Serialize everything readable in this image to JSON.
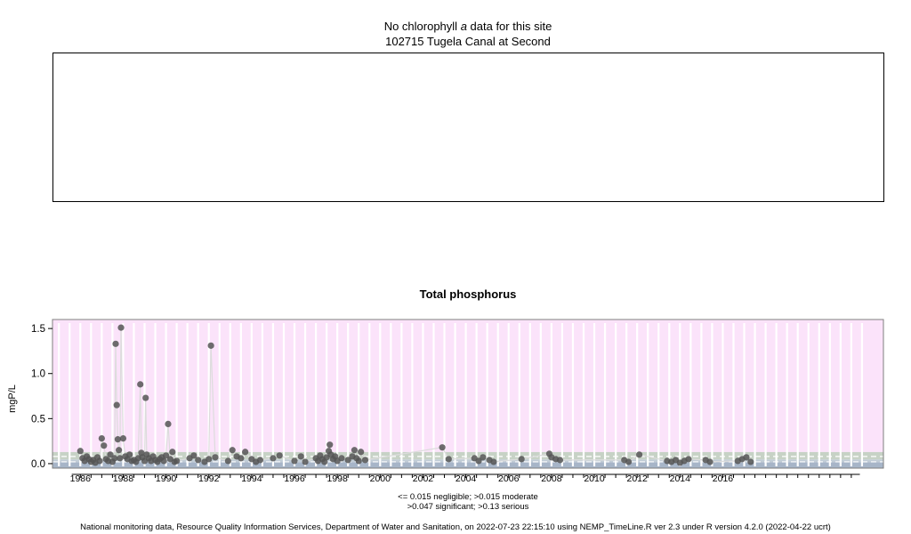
{
  "top_panel": {
    "message_prefix": "No chlorophyll",
    "message_italic": "a",
    "message_suffix": " data for this site",
    "site": "102715 Tugela Canal at Second"
  },
  "chart_data": {
    "type": "scatter",
    "title": "Total phosphorus",
    "xlabel": "",
    "ylabel": "mgP/L",
    "xlim": [
      1984.7,
      2023.5
    ],
    "ylim": [
      -0.05,
      1.6
    ],
    "yticks": [
      0.0,
      0.5,
      1.0,
      1.5
    ],
    "ytick_labels": [
      "0.0",
      "0.5",
      "1.0",
      "1.5"
    ],
    "xticks": [
      1986,
      1988,
      1990,
      1992,
      1994,
      1996,
      1998,
      2000,
      2002,
      2004,
      2006,
      2008,
      2010,
      2012,
      2014,
      2016
    ],
    "xtick_labels": [
      "1986",
      "1988",
      "1990",
      "1992",
      "1994",
      "1996",
      "1998",
      "2000",
      "2002",
      "2004",
      "2006",
      "2008",
      "2010",
      "2012",
      "2014",
      "2016"
    ],
    "bands": [
      {
        "name": "negligible",
        "from": -0.05,
        "to": 0.015,
        "color": "#a7b5c8"
      },
      {
        "name": "moderate",
        "from": 0.015,
        "to": 0.047,
        "color": "#c1ccd6"
      },
      {
        "name": "significant",
        "from": 0.047,
        "to": 0.13,
        "color": "#c7d2c6"
      },
      {
        "name": "serious",
        "from": 0.13,
        "to": 1.6,
        "color": "#fbe3fa"
      }
    ],
    "point_color": "#555555",
    "trend_color": "#dcdcdc",
    "series": [
      {
        "x": [
          1986.0,
          1986.1,
          1986.2,
          1986.3,
          1986.4,
          1986.5,
          1986.6,
          1986.7,
          1986.8,
          1986.9,
          1987.0,
          1987.1,
          1987.2,
          1987.3,
          1987.4,
          1987.5,
          1987.6,
          1987.65,
          1987.7,
          1987.75,
          1987.8,
          1987.85,
          1987.9,
          1988.0,
          1988.1,
          1988.2,
          1988.3,
          1988.4,
          1988.5,
          1988.6,
          1988.7,
          1988.8,
          1988.85,
          1988.9,
          1989.0,
          1989.05,
          1989.1,
          1989.2,
          1989.3,
          1989.4,
          1989.5,
          1989.6,
          1989.7,
          1989.8,
          1989.9,
          1990.0,
          1990.1,
          1990.2,
          1990.3,
          1990.4,
          1990.5,
          1991.1,
          1991.3,
          1991.5,
          1991.8,
          1992.0,
          1992.1,
          1992.3,
          1992.9,
          1993.1,
          1993.3,
          1993.5,
          1993.7,
          1994.0,
          1994.2,
          1994.4,
          1995.0,
          1995.3,
          1996.0,
          1996.3,
          1996.5,
          1997.0,
          1997.1,
          1997.2,
          1997.3,
          1997.4,
          1997.5,
          1997.6,
          1997.65,
          1997.7,
          1997.8,
          1997.9,
          1998.0,
          1998.2,
          1998.5,
          1998.7,
          1998.8,
          1998.9,
          1999.0,
          1999.1,
          1999.3,
          2002.9,
          2003.2,
          2004.4,
          2004.6,
          2004.8,
          2005.1,
          2005.3,
          2006.6,
          2007.9,
          2008.0,
          2008.2,
          2008.4,
          2011.4,
          2011.6,
          2012.1,
          2013.4,
          2013.6,
          2013.8,
          2014.0,
          2014.2,
          2014.4,
          2015.2,
          2015.4,
          2016.7,
          2016.9,
          2017.1,
          2017.3
        ],
        "y": [
          0.14,
          0.06,
          0.03,
          0.08,
          0.05,
          0.02,
          0.04,
          0.01,
          0.07,
          0.03,
          0.28,
          0.2,
          0.05,
          0.03,
          0.1,
          0.02,
          0.06,
          1.33,
          0.65,
          0.27,
          0.15,
          0.06,
          1.51,
          0.28,
          0.08,
          0.05,
          0.1,
          0.03,
          0.04,
          0.02,
          0.06,
          0.88,
          0.12,
          0.07,
          0.03,
          0.73,
          0.1,
          0.06,
          0.03,
          0.08,
          0.04,
          0.02,
          0.05,
          0.07,
          0.03,
          0.09,
          0.44,
          0.05,
          0.13,
          0.02,
          0.03,
          0.06,
          0.09,
          0.04,
          0.02,
          0.05,
          1.31,
          0.07,
          0.03,
          0.15,
          0.08,
          0.06,
          0.13,
          0.05,
          0.02,
          0.04,
          0.06,
          0.09,
          0.03,
          0.08,
          0.02,
          0.06,
          0.03,
          0.09,
          0.05,
          0.02,
          0.07,
          0.14,
          0.21,
          0.1,
          0.05,
          0.08,
          0.03,
          0.06,
          0.04,
          0.08,
          0.15,
          0.06,
          0.03,
          0.13,
          0.04,
          0.18,
          0.05,
          0.06,
          0.03,
          0.07,
          0.04,
          0.02,
          0.05,
          0.11,
          0.07,
          0.05,
          0.04,
          0.04,
          0.02,
          0.1,
          0.03,
          0.02,
          0.04,
          0.01,
          0.03,
          0.05,
          0.04,
          0.02,
          0.03,
          0.05,
          0.07,
          0.02
        ]
      }
    ],
    "legend_line1": "<= 0.015 negligible; >0.015 moderate",
    "legend_line2": ">0.047 significant; >0.13 serious"
  },
  "footer": "National monitoring data, Resource Quality Information Services, Department of Water and Sanitation, on 2022-07-23 22:15:10 using NEMP_TimeLine.R ver 2.3 under R version 4.2.0 (2022-04-22 ucrt)"
}
